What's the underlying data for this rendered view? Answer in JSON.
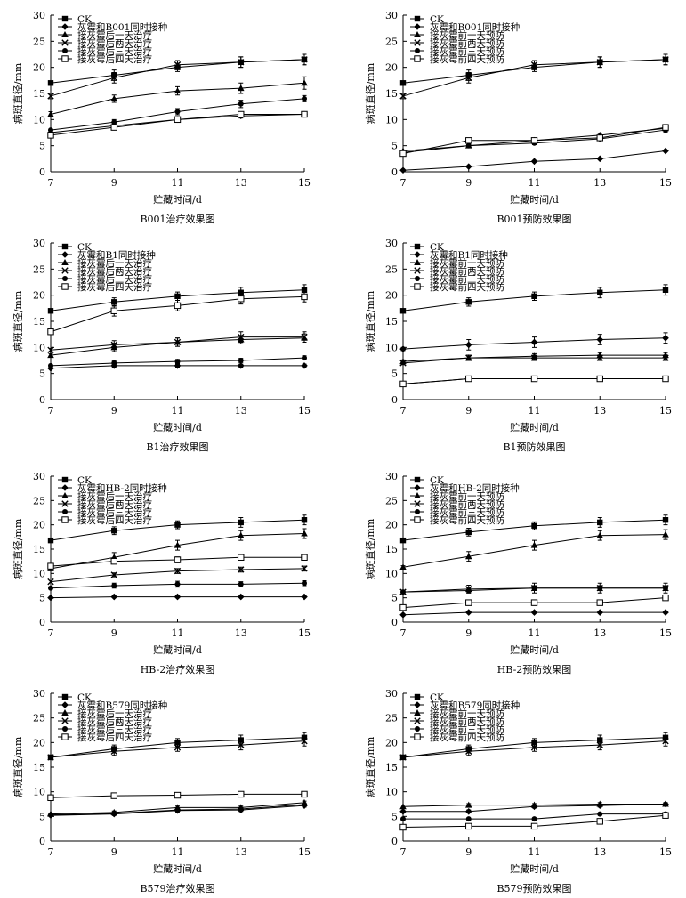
{
  "chart_data": [
    {
      "type": "line",
      "title": "B001治疗效果图",
      "xlabel": "贮藏时间/d",
      "ylabel": "病斑直径/mm",
      "xlim": [
        7,
        15
      ],
      "ylim": [
        0,
        30
      ],
      "x_ticks": [
        7,
        9,
        11,
        13,
        15
      ],
      "y_ticks": [
        0,
        5,
        10,
        15,
        20,
        25,
        30
      ],
      "x": [
        7,
        9,
        11,
        13,
        15
      ],
      "legend_position": "top-left",
      "series": [
        {
          "name": "CK",
          "marker": "square",
          "values": [
            17,
            18.5,
            20,
            21,
            21.5
          ],
          "errors": [
            0,
            1,
            0.8,
            1,
            1
          ]
        },
        {
          "name": "灰霉和B001同时接种",
          "marker": "diamond",
          "values": [
            7.5,
            8.8,
            10,
            10.7,
            11
          ],
          "errors": [
            0,
            0.3,
            0.3,
            0.4,
            0.4
          ]
        },
        {
          "name": "接灰霉后一天治疗",
          "marker": "triangle",
          "values": [
            11,
            14,
            15.5,
            16,
            17
          ],
          "errors": [
            0.5,
            0.7,
            0.8,
            1,
            1.2
          ]
        },
        {
          "name": "接灰霉后两天治疗",
          "marker": "x",
          "values": [
            14.5,
            18,
            20.5,
            21,
            21.5
          ],
          "errors": [
            0.5,
            1,
            0.8,
            1,
            1
          ]
        },
        {
          "name": "接灰霉后三天治疗",
          "marker": "circle",
          "values": [
            8,
            9.5,
            11.5,
            13,
            14
          ],
          "errors": [
            0,
            0.5,
            0.6,
            0.7,
            0.6
          ]
        },
        {
          "name": "接灰霉后四天治疗",
          "marker": "open-square",
          "values": [
            7,
            8.5,
            10,
            11,
            11
          ],
          "errors": [
            0,
            0.3,
            0.3,
            0.4,
            0.4
          ]
        }
      ]
    },
    {
      "type": "line",
      "title": "B001预防效果图",
      "xlabel": "贮藏时间/d",
      "ylabel": "病斑直径/mm",
      "xlim": [
        7,
        15
      ],
      "ylim": [
        0,
        30
      ],
      "x_ticks": [
        7,
        9,
        11,
        13,
        15
      ],
      "y_ticks": [
        0,
        5,
        10,
        15,
        20,
        25,
        30
      ],
      "x": [
        7,
        9,
        11,
        13,
        15
      ],
      "legend_position": "top-left",
      "series": [
        {
          "name": "CK",
          "marker": "square",
          "values": [
            17,
            18.5,
            20,
            21,
            21.5
          ],
          "errors": [
            0,
            1,
            0.8,
            1,
            1
          ]
        },
        {
          "name": "灰霉和B001同时接种",
          "marker": "diamond",
          "values": [
            0.3,
            1,
            2,
            2.5,
            4
          ],
          "errors": [
            0,
            0,
            0,
            0,
            0
          ]
        },
        {
          "name": "接灰霉前一天预防",
          "marker": "triangle",
          "values": [
            4,
            5,
            6,
            7,
            8.3
          ],
          "errors": [
            0,
            0.2,
            0.3,
            0.3,
            0.4
          ]
        },
        {
          "name": "接灰霉前两天预防",
          "marker": "x",
          "values": [
            14.5,
            18,
            20.5,
            21,
            21.5
          ],
          "errors": [
            0.5,
            1,
            0.8,
            1,
            1
          ]
        },
        {
          "name": "接灰霉前三天预防",
          "marker": "circle",
          "values": [
            3.7,
            5,
            5.5,
            6.3,
            8
          ],
          "errors": [
            0,
            0.2,
            0.3,
            0.3,
            0.4
          ]
        },
        {
          "name": "接灰霉前四天预防",
          "marker": "open-square",
          "values": [
            3.5,
            6,
            6,
            6.5,
            8.5
          ],
          "errors": [
            0,
            0.2,
            0.3,
            0.3,
            0.5
          ]
        }
      ]
    },
    {
      "type": "line",
      "title": "B1治疗效果图",
      "xlabel": "贮藏时间/d",
      "ylabel": "病斑直径/mm",
      "xlim": [
        7,
        15
      ],
      "ylim": [
        0,
        30
      ],
      "x_ticks": [
        7,
        9,
        11,
        13,
        15
      ],
      "y_ticks": [
        0,
        5,
        10,
        15,
        20,
        25,
        30
      ],
      "x": [
        7,
        9,
        11,
        13,
        15
      ],
      "legend_position": "top-left",
      "series": [
        {
          "name": "CK",
          "marker": "square",
          "values": [
            17,
            18.7,
            19.8,
            20.5,
            21
          ],
          "errors": [
            0,
            0.8,
            0.8,
            1,
            1
          ]
        },
        {
          "name": "灰霉和B1同时接种",
          "marker": "diamond",
          "values": [
            6,
            6.5,
            6.5,
            6.5,
            6.5
          ],
          "errors": [
            0,
            0.3,
            0.3,
            0.3,
            0.3
          ]
        },
        {
          "name": "接灰霉后一天治疗",
          "marker": "triangle",
          "values": [
            8.5,
            10,
            11,
            11.5,
            11.8
          ],
          "errors": [
            0.3,
            0.8,
            0.8,
            0.8,
            0.8
          ]
        },
        {
          "name": "接灰霉后两天治疗",
          "marker": "x",
          "values": [
            9.5,
            10.5,
            11,
            12,
            12
          ],
          "errors": [
            0.3,
            0.8,
            0.8,
            1,
            1
          ]
        },
        {
          "name": "接灰霉后三天治疗",
          "marker": "circle",
          "values": [
            6.5,
            7,
            7.3,
            7.5,
            8
          ],
          "errors": [
            0,
            0.4,
            0.4,
            0.4,
            0.4
          ]
        },
        {
          "name": "接灰霉后四天治疗",
          "marker": "open-square",
          "values": [
            13,
            17,
            18,
            19.3,
            19.7
          ],
          "errors": [
            0.4,
            1,
            1,
            1,
            1
          ]
        }
      ]
    },
    {
      "type": "line",
      "title": "B1预防效果图",
      "xlabel": "贮藏时间/d",
      "ylabel": "病斑直径/mm",
      "xlim": [
        7,
        15
      ],
      "ylim": [
        0,
        30
      ],
      "x_ticks": [
        7,
        9,
        11,
        13,
        15
      ],
      "y_ticks": [
        0,
        5,
        10,
        15,
        20,
        25,
        30
      ],
      "x": [
        7,
        9,
        11,
        13,
        15
      ],
      "legend_position": "top-left",
      "series": [
        {
          "name": "CK",
          "marker": "square",
          "values": [
            17,
            18.7,
            19.8,
            20.5,
            21
          ],
          "errors": [
            0,
            0.8,
            0.8,
            1,
            1
          ]
        },
        {
          "name": "灰霉和B1同时接种",
          "marker": "diamond",
          "values": [
            9.7,
            10.5,
            11,
            11.5,
            11.8
          ],
          "errors": [
            0.3,
            1,
            1,
            1,
            1
          ]
        },
        {
          "name": "接灰霉前一天预防",
          "marker": "triangle",
          "values": [
            7.3,
            8,
            8.3,
            8.5,
            8.5
          ],
          "errors": [
            0.3,
            0.5,
            0.5,
            0.5,
            0.5
          ]
        },
        {
          "name": "接灰霉前两天预防",
          "marker": "x",
          "values": [
            7,
            8,
            8,
            8,
            8
          ],
          "errors": [
            0.3,
            0.5,
            0.5,
            0.5,
            0.5
          ]
        },
        {
          "name": "接灰霉前三天预防",
          "marker": "circle",
          "values": [
            3,
            4,
            4,
            4,
            4
          ],
          "errors": [
            0,
            0,
            0,
            0,
            0
          ]
        },
        {
          "name": "接灰霉前四天预防",
          "marker": "open-square",
          "values": [
            3,
            4,
            4,
            4,
            4
          ],
          "errors": [
            0,
            0,
            0,
            0,
            0
          ]
        }
      ]
    },
    {
      "type": "line",
      "title": "HB-2治疗效果图",
      "xlabel": "贮藏时间/d",
      "ylabel": "病斑直径/mm",
      "xlim": [
        7,
        15
      ],
      "ylim": [
        0,
        30
      ],
      "x_ticks": [
        7,
        9,
        11,
        13,
        15
      ],
      "y_ticks": [
        0,
        5,
        10,
        15,
        20,
        25,
        30
      ],
      "x": [
        7,
        9,
        11,
        13,
        15
      ],
      "legend_position": "top-left",
      "series": [
        {
          "name": "CK",
          "marker": "square",
          "values": [
            16.8,
            18.8,
            20,
            20.5,
            21
          ],
          "errors": [
            0,
            0.8,
            0.8,
            1,
            1
          ]
        },
        {
          "name": "灰霉和HB-2同时接种",
          "marker": "diamond",
          "values": [
            5,
            5.2,
            5.2,
            5.2,
            5.2
          ],
          "errors": [
            0,
            0,
            0,
            0,
            0
          ]
        },
        {
          "name": "接灰霉后一天治疗",
          "marker": "triangle",
          "values": [
            11,
            13.3,
            15.8,
            17.8,
            18.2
          ],
          "errors": [
            0.3,
            1,
            1,
            1,
            1
          ]
        },
        {
          "name": "接灰霉后两天治疗",
          "marker": "x",
          "values": [
            8.3,
            9.7,
            10.5,
            10.8,
            11
          ],
          "errors": [
            0,
            0.4,
            0.5,
            0.5,
            0.5
          ]
        },
        {
          "name": "接灰霉后三天治疗",
          "marker": "circle",
          "values": [
            7,
            7.5,
            7.8,
            7.8,
            8
          ],
          "errors": [
            0,
            0.5,
            0.6,
            0.5,
            0.5
          ]
        },
        {
          "name": "接灰霉后四天治疗",
          "marker": "open-square",
          "values": [
            11.5,
            12.5,
            12.8,
            13.3,
            13.3
          ],
          "errors": [
            0.3,
            0.5,
            0.6,
            0.5,
            0.5
          ]
        }
      ]
    },
    {
      "type": "line",
      "title": "HB-2预防效果图",
      "xlabel": "贮藏时间/d",
      "ylabel": "病斑直径/mm",
      "xlim": [
        7,
        15
      ],
      "ylim": [
        0,
        30
      ],
      "x_ticks": [
        7,
        9,
        11,
        13,
        15
      ],
      "y_ticks": [
        0,
        5,
        10,
        15,
        20,
        25,
        30
      ],
      "x": [
        7,
        9,
        11,
        13,
        15
      ],
      "legend_position": "top-left",
      "series": [
        {
          "name": "CK",
          "marker": "square",
          "values": [
            16.8,
            18.5,
            19.8,
            20.5,
            21
          ],
          "errors": [
            0,
            0.8,
            0.8,
            1,
            1
          ]
        },
        {
          "name": "灰霉和HB-2同时接种",
          "marker": "diamond",
          "values": [
            1.5,
            2,
            2,
            2,
            2
          ],
          "errors": [
            0,
            0,
            0,
            0,
            0
          ]
        },
        {
          "name": "接灰霉前一天预防",
          "marker": "triangle",
          "values": [
            11.3,
            13.5,
            15.8,
            17.8,
            18
          ],
          "errors": [
            0.3,
            1,
            1,
            1,
            1
          ]
        },
        {
          "name": "接灰霉前两天预防",
          "marker": "x",
          "values": [
            6.2,
            6.8,
            7,
            7,
            7
          ],
          "errors": [
            0,
            0.8,
            1,
            1,
            1
          ]
        },
        {
          "name": "接灰霉前三天预防",
          "marker": "circle",
          "values": [
            6.2,
            6.5,
            7,
            7,
            7
          ],
          "errors": [
            0,
            0.5,
            0.5,
            0.5,
            0.5
          ]
        },
        {
          "name": "接灰霉前四天预防",
          "marker": "open-square",
          "values": [
            3,
            4,
            4,
            4,
            5
          ],
          "errors": [
            0,
            0.4,
            0.4,
            0.4,
            0.5
          ]
        }
      ]
    },
    {
      "type": "line",
      "title": "B579治疗效果图",
      "xlabel": "贮藏时间/d",
      "ylabel": "病斑直径/mm",
      "xlim": [
        7,
        15
      ],
      "ylim": [
        0,
        30
      ],
      "x_ticks": [
        7,
        9,
        11,
        13,
        15
      ],
      "y_ticks": [
        0,
        5,
        10,
        15,
        20,
        25,
        30
      ],
      "x": [
        7,
        9,
        11,
        13,
        15
      ],
      "legend_position": "top-left",
      "series": [
        {
          "name": "CK",
          "marker": "square",
          "values": [
            17,
            18.7,
            20,
            20.5,
            21
          ],
          "errors": [
            0,
            0.8,
            0.8,
            1,
            1
          ]
        },
        {
          "name": "灰霉和B579同时接种",
          "marker": "diamond",
          "values": [
            5.2,
            5.5,
            6.2,
            6.3,
            7.2
          ],
          "errors": [
            0,
            0.3,
            0.3,
            0.3,
            0.3
          ]
        },
        {
          "name": "接灰霉后一天治疗",
          "marker": "triangle",
          "values": [
            5.5,
            5.8,
            6.8,
            6.8,
            7.8
          ],
          "errors": [
            0,
            0.3,
            0.3,
            0.3,
            0.3
          ]
        },
        {
          "name": "接灰霉后两天治疗",
          "marker": "x",
          "values": [
            17,
            18.2,
            19,
            19.5,
            20.3
          ],
          "errors": [
            0,
            0.8,
            0.8,
            1,
            1
          ]
        },
        {
          "name": "接灰霉后三天治疗",
          "marker": "circle",
          "values": [
            5.3,
            5.6,
            6.3,
            6.5,
            7.4
          ],
          "errors": [
            0,
            0.3,
            0.3,
            0.3,
            0.3
          ]
        },
        {
          "name": "接灰霉后四天治疗",
          "marker": "open-square",
          "values": [
            8.8,
            9.2,
            9.3,
            9.5,
            9.5
          ],
          "errors": [
            0,
            0,
            0,
            0,
            0
          ]
        }
      ]
    },
    {
      "type": "line",
      "title": "B579预防效果图",
      "xlabel": "贮藏时间/d",
      "ylabel": "病斑直径/mm",
      "xlim": [
        7,
        15
      ],
      "ylim": [
        0,
        30
      ],
      "x_ticks": [
        7,
        9,
        11,
        13,
        15
      ],
      "y_ticks": [
        0,
        5,
        10,
        15,
        20,
        25,
        30
      ],
      "x": [
        7,
        9,
        11,
        13,
        15
      ],
      "legend_position": "top-left",
      "series": [
        {
          "name": "CK",
          "marker": "square",
          "values": [
            17,
            18.7,
            20,
            20.5,
            21
          ],
          "errors": [
            0,
            0.8,
            0.8,
            1,
            1
          ]
        },
        {
          "name": "灰霉和B579同时接种",
          "marker": "diamond",
          "values": [
            6,
            6,
            7,
            7.2,
            7.5
          ],
          "errors": [
            0,
            0.3,
            0.3,
            0.3,
            0.3
          ]
        },
        {
          "name": "接灰霉前一天预防",
          "marker": "triangle",
          "values": [
            7,
            7.3,
            7.3,
            7.5,
            7.5
          ],
          "errors": [
            0,
            0.3,
            0.3,
            0.3,
            0.3
          ]
        },
        {
          "name": "接灰霉前两天预防",
          "marker": "x",
          "values": [
            17,
            18.2,
            19,
            19.5,
            20.3
          ],
          "errors": [
            0,
            0.8,
            0.8,
            1,
            1
          ]
        },
        {
          "name": "接灰霉前三天预防",
          "marker": "circle",
          "values": [
            4.5,
            4.5,
            4.5,
            5.5,
            5.5
          ],
          "errors": [
            0,
            0,
            0,
            0,
            0.3
          ]
        },
        {
          "name": "接灰霉前四天预防",
          "marker": "open-square",
          "values": [
            2.8,
            3,
            3,
            4,
            5.2
          ],
          "errors": [
            0,
            0,
            0,
            0,
            0.3
          ]
        }
      ]
    }
  ]
}
